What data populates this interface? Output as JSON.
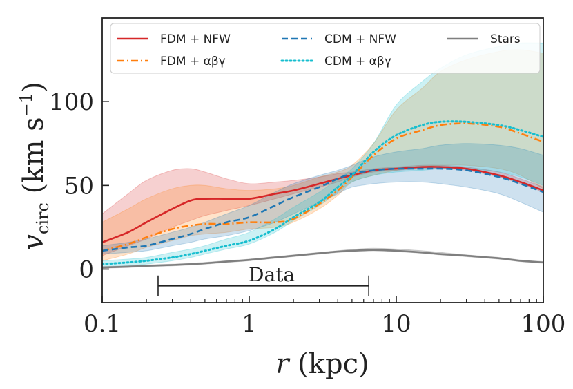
{
  "chart_data": {
    "type": "line",
    "title": "",
    "xlabel": "r (kpc)",
    "ylabel": "v_circ (km s^-1)",
    "x_scale": "log",
    "xlim": [
      0.1,
      100
    ],
    "ylim": [
      -20,
      150
    ],
    "x_ticks": [
      0.1,
      1,
      10,
      100
    ],
    "x_tick_labels": [
      "0.1",
      "1",
      "10",
      "100"
    ],
    "y_ticks": [
      0,
      50,
      100
    ],
    "y_tick_labels": [
      "0",
      "50",
      "100"
    ],
    "grid": false,
    "legend_position": "top",
    "x": [
      0.1,
      0.15,
      0.2,
      0.3,
      0.4,
      0.5,
      0.7,
      1,
      1.5,
      2,
      3,
      4,
      5,
      7,
      10,
      15,
      20,
      30,
      50,
      70,
      100
    ],
    "series": [
      {
        "name": "FDM + NFW",
        "color": "#d62728",
        "style": "solid",
        "values": [
          16,
          22,
          28,
          36,
          41,
          42,
          42,
          42,
          45,
          47,
          51,
          54,
          56,
          59,
          60,
          61,
          61,
          60,
          56,
          52,
          47
        ],
        "band_lower": [
          8,
          14,
          18,
          25,
          29,
          32,
          35,
          38,
          42,
          45,
          49,
          52,
          55,
          58,
          59,
          60,
          60,
          59,
          55,
          51,
          46
        ],
        "band_upper": [
          33,
          45,
          53,
          59,
          60,
          58,
          54,
          51,
          52,
          53,
          55,
          57,
          58,
          60,
          61,
          62,
          62,
          61,
          58,
          54,
          49
        ],
        "band_color": "#d62728"
      },
      {
        "name": "FDM + αβγ",
        "color": "#ff7f0e",
        "style": "dashdot",
        "values": [
          11,
          15,
          19,
          24,
          26,
          27,
          27,
          28,
          28,
          30,
          39,
          47,
          55,
          68,
          78,
          83,
          86,
          87,
          85,
          81,
          76
        ],
        "band_lower": [
          5,
          9,
          13,
          17,
          20,
          21,
          22,
          24,
          25,
          28,
          36,
          44,
          52,
          56,
          59,
          61,
          62,
          62,
          60,
          56,
          48
        ],
        "band_upper": [
          28,
          36,
          42,
          48,
          50,
          50,
          48,
          47,
          48,
          50,
          55,
          58,
          62,
          75,
          95,
          108,
          118,
          125,
          130,
          131,
          129
        ],
        "band_color": "#ff7f0e"
      },
      {
        "name": "CDM + NFW",
        "color": "#1f77b4",
        "style": "dashed",
        "values": [
          11,
          13,
          14,
          18,
          21,
          24,
          28,
          31,
          38,
          43,
          49,
          54,
          57,
          59,
          60,
          60,
          60,
          59,
          55,
          51,
          46
        ],
        "band_lower": [
          9,
          10,
          11,
          14,
          16,
          18,
          20,
          23,
          28,
          33,
          40,
          45,
          49,
          51,
          52,
          52,
          51,
          49,
          45,
          40,
          34
        ],
        "band_upper": [
          14,
          16,
          18,
          22,
          25,
          28,
          33,
          38,
          46,
          51,
          56,
          59,
          62,
          67,
          70,
          72,
          74,
          75,
          74,
          72,
          68
        ],
        "band_color": "#1f77b4"
      },
      {
        "name": "CDM + αβγ",
        "color": "#17becf",
        "style": "dotted",
        "values": [
          3,
          4,
          5,
          7,
          9,
          11,
          14,
          17,
          24,
          31,
          40,
          49,
          56,
          70,
          80,
          86,
          88,
          88,
          86,
          83,
          79
        ],
        "band_lower": [
          1,
          2,
          3,
          5,
          7,
          9,
          12,
          15,
          22,
          29,
          38,
          46,
          52,
          56,
          58,
          59,
          60,
          60,
          58,
          55,
          50
        ],
        "band_upper": [
          5,
          6,
          7,
          10,
          12,
          14,
          18,
          22,
          30,
          37,
          46,
          54,
          60,
          75,
          98,
          112,
          120,
          128,
          133,
          135,
          135
        ],
        "band_color": "#17becf"
      },
      {
        "name": "Stars",
        "color": "#7f7f7f",
        "style": "solid",
        "values": [
          1,
          1.5,
          2,
          2.5,
          3,
          3.5,
          4.5,
          5.5,
          7,
          8,
          9.5,
          10.5,
          11,
          11.5,
          11,
          10,
          9,
          8,
          6.5,
          5,
          4
        ],
        "band_lower": [
          0.5,
          1,
          1.5,
          2,
          2.5,
          3,
          4,
          5,
          6.5,
          7.5,
          9,
          10,
          10.5,
          11,
          10.5,
          9.5,
          8.5,
          7.5,
          6,
          4.5,
          3.5
        ],
        "band_upper": [
          1.5,
          2,
          2.5,
          3,
          3.5,
          4,
          5,
          6,
          7.5,
          8.5,
          10,
          11,
          11.8,
          12.5,
          12,
          11,
          10,
          8.5,
          7,
          5.5,
          4.5
        ],
        "band_color": "#555555"
      }
    ],
    "annotations": [
      {
        "text": "Data",
        "x_start": 0.24,
        "x_end": 6.5,
        "y": -10
      }
    ]
  }
}
